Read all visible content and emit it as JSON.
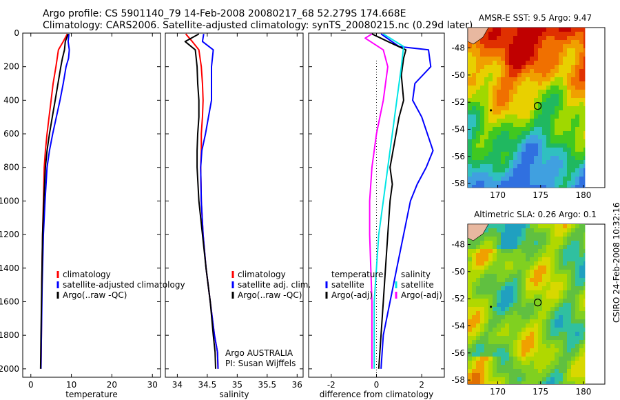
{
  "header": {
    "line1": "Argo profile: CS 5901140_79 14-Feb-2008 20080217_68 52.279S 174.668E",
    "line2": "Climatology: CARS2006. Satellite-adjusted climatology: synTS_20080215.nc (0.29d later)"
  },
  "side_label": "CSIRO 24-Feb-2008 10:32:16",
  "colors": {
    "climatology": "#ff0000",
    "satellite": "#0000ff",
    "argo": "#000000",
    "sat_salinity": "#00e5e5",
    "argo_salinity": "#ff00ff"
  },
  "chart_data": [
    {
      "type": "line",
      "id": "temperature",
      "xlabel": "temperature",
      "xlim": [
        -2,
        32
      ],
      "ylim": [
        0,
        2050
      ],
      "y_reversed": true,
      "xticks": [
        0,
        10,
        20,
        30
      ],
      "yticks": [
        0,
        200,
        400,
        600,
        800,
        1000,
        1200,
        1400,
        1600,
        1800,
        2000
      ],
      "legend": [
        "climatology",
        "satellite-adjusted climatology",
        "Argo(..raw -QC)"
      ],
      "series": [
        {
          "name": "climatology",
          "color": "#ff0000",
          "x": [
            9.0,
            8.0,
            6.8,
            6.5,
            6.2,
            5.5,
            5.0,
            4.5,
            4.0,
            3.6,
            3.3,
            3.1,
            2.9,
            2.7,
            2.6,
            2.5
          ],
          "y": [
            5,
            50,
            100,
            150,
            200,
            300,
            400,
            500,
            600,
            700,
            800,
            1000,
            1200,
            1500,
            1800,
            2000
          ]
        },
        {
          "name": "satellite-adjusted climatology",
          "color": "#0000ff",
          "x": [
            9.4,
            9.2,
            9.5,
            9.3,
            8.7,
            8.0,
            7.2,
            6.3,
            5.4,
            4.6,
            4.0,
            3.5,
            3.1,
            2.8,
            2.6,
            2.5
          ],
          "y": [
            5,
            50,
            100,
            150,
            200,
            300,
            400,
            500,
            600,
            700,
            800,
            1000,
            1200,
            1500,
            1800,
            2000
          ]
        },
        {
          "name": "Argo(..raw -QC)",
          "color": "#000000",
          "x": [
            9.2,
            8.5,
            8.3,
            7.8,
            7.4,
            6.7,
            6.0,
            5.3,
            4.6,
            4.0,
            3.6,
            3.2,
            2.9,
            2.7,
            2.5,
            2.4
          ],
          "y": [
            5,
            50,
            100,
            150,
            200,
            300,
            400,
            500,
            600,
            700,
            800,
            1000,
            1200,
            1500,
            1800,
            2000
          ]
        }
      ]
    },
    {
      "type": "line",
      "id": "salinity",
      "xlabel": "salinity",
      "xlim": [
        33.8,
        36.1
      ],
      "ylim": [
        0,
        2050
      ],
      "y_reversed": true,
      "xticks": [
        34,
        34.5,
        35,
        35.5,
        36
      ],
      "legend": [
        "climatology",
        "satellite adj. clim.",
        "Argo(..raw -QC)"
      ],
      "annotation": [
        "Argo AUSTRALIA",
        "PI: Susan Wijffels"
      ],
      "series": [
        {
          "name": "climatology",
          "color": "#ff0000",
          "x": [
            34.14,
            34.25,
            34.36,
            34.4,
            34.42,
            34.43,
            34.42,
            34.4,
            34.4,
            34.39,
            34.4,
            34.43,
            34.48,
            34.55,
            34.62,
            34.67,
            34.68
          ],
          "y": [
            5,
            50,
            100,
            200,
            300,
            400,
            500,
            600,
            700,
            800,
            1000,
            1200,
            1400,
            1600,
            1800,
            1900,
            2000
          ]
        },
        {
          "name": "satellite adj. clim.",
          "color": "#0000ff",
          "x": [
            34.44,
            34.42,
            34.6,
            34.57,
            34.57,
            34.57,
            34.52,
            34.47,
            34.41,
            34.39,
            34.4,
            34.43,
            34.48,
            34.55,
            34.62,
            34.67,
            34.68
          ],
          "y": [
            5,
            50,
            100,
            200,
            300,
            400,
            500,
            600,
            700,
            800,
            1000,
            1200,
            1400,
            1600,
            1800,
            1900,
            2000
          ]
        },
        {
          "name": "Argo(..raw -QC)",
          "color": "#000000",
          "x": [
            34.36,
            34.13,
            34.3,
            34.33,
            34.34,
            34.36,
            34.36,
            34.34,
            34.33,
            34.33,
            34.36,
            34.42,
            34.48,
            34.55,
            34.6,
            34.63,
            34.64
          ],
          "y": [
            5,
            50,
            100,
            200,
            300,
            400,
            500,
            600,
            700,
            800,
            1000,
            1200,
            1400,
            1600,
            1800,
            1900,
            2000
          ]
        }
      ]
    },
    {
      "type": "line",
      "id": "difference",
      "xlabel": "difference from climatology",
      "xlim": [
        -3,
        3
      ],
      "ylim": [
        0,
        2050
      ],
      "y_reversed": true,
      "xticks": [
        -2,
        0,
        2
      ],
      "legend_left_title": "temperature",
      "legend_right_title": "salinity",
      "legend": [
        "satellite",
        "Argo(-adj)",
        "satellite",
        "Argo(-adj)"
      ],
      "series": [
        {
          "name": "temperature satellite",
          "color": "#0000ff",
          "x": [
            0.2,
            1.0,
            2.3,
            2.4,
            1.7,
            1.6,
            2.0,
            2.5,
            2.2,
            1.8,
            1.5,
            1.2,
            0.9,
            0.6,
            0.3,
            0.2
          ],
          "y": [
            5,
            80,
            100,
            200,
            300,
            400,
            500,
            700,
            800,
            900,
            1000,
            1200,
            1400,
            1600,
            1800,
            2000
          ]
        },
        {
          "name": "temperature Argo(-adj)",
          "color": "#000000",
          "x": [
            -0.2,
            0.5,
            1.3,
            1.2,
            1.1,
            1.2,
            1.0,
            0.6,
            0.7,
            0.6,
            0.5,
            0.4,
            0.3,
            0.2,
            0.1
          ],
          "y": [
            5,
            50,
            100,
            150,
            250,
            400,
            500,
            800,
            900,
            1000,
            1200,
            1400,
            1600,
            1800,
            2000
          ]
        },
        {
          "name": "salinity satellite",
          "color": "#00e5e5",
          "x": [
            0.3,
            1.2,
            1.1,
            0.9,
            0.7,
            0.5,
            0.3,
            0.1,
            -0.1,
            -0.1
          ],
          "y": [
            5,
            80,
            200,
            400,
            600,
            800,
            1000,
            1200,
            1600,
            2000
          ]
        },
        {
          "name": "salinity Argo(-adj)",
          "color": "#ff00ff",
          "x": [
            -0.2,
            -0.5,
            0.3,
            0.5,
            0.3,
            0.0,
            -0.2,
            -0.3,
            -0.3,
            -0.2,
            -0.2
          ],
          "y": [
            5,
            30,
            100,
            200,
            400,
            600,
            800,
            1000,
            1200,
            1600,
            2000
          ]
        }
      ]
    },
    {
      "type": "heatmap",
      "id": "sst-map",
      "title": "AMSR-E SST: 9.5 Argo: 9.47",
      "xlim": [
        166.5,
        182.5
      ],
      "ylim": [
        -58.3,
        -46.5
      ],
      "xticks": [
        170,
        175,
        180
      ],
      "yticks": [
        -48,
        -50,
        -52,
        -54,
        -56,
        -58
      ],
      "colors": [
        "#c00000",
        "#e03000",
        "#f07000",
        "#f0a000",
        "#e8d000",
        "#a0d800",
        "#40c820",
        "#20b860",
        "#30c0c0",
        "#40a0e0",
        "#3070e0"
      ],
      "marker": {
        "lon": 174.668,
        "lat": -52.279
      }
    },
    {
      "type": "heatmap",
      "id": "sla-map",
      "title": "Altimetric SLA: 0.26 Argo: 0.1",
      "xlim": [
        166.5,
        182.5
      ],
      "ylim": [
        -58.3,
        -46.5
      ],
      "xticks": [
        170,
        175,
        180
      ],
      "yticks": [
        -48,
        -50,
        -52,
        -54,
        -56,
        -58
      ],
      "colors": [
        "#20a0c0",
        "#30c0a0",
        "#60c040",
        "#80d020",
        "#b0d800",
        "#d8d800",
        "#f0a000",
        "#e07000"
      ],
      "marker": {
        "lon": 174.668,
        "lat": -52.279
      }
    }
  ]
}
